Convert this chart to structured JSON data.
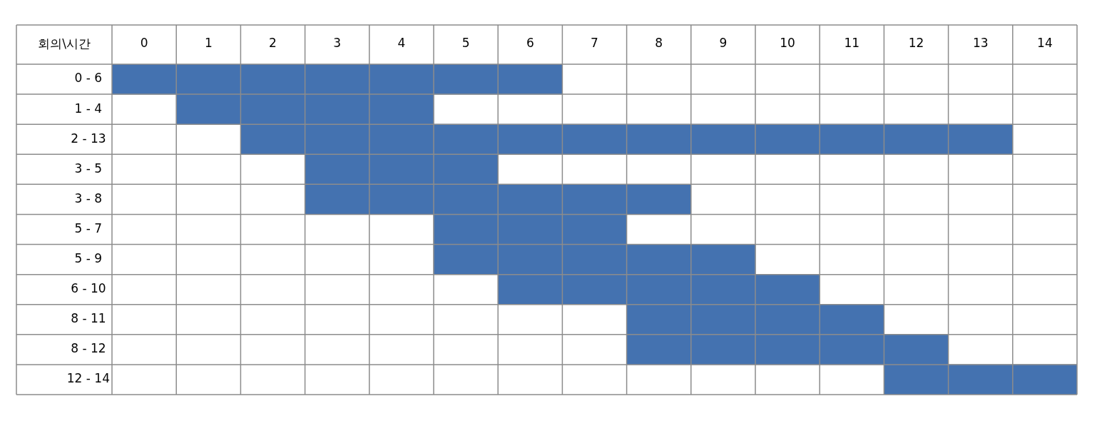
{
  "chart_data": {
    "type": "bar",
    "orientation": "horizontal",
    "ylabel": "회의\\시간",
    "categories": [
      "0 - 6",
      "1 - 4",
      "2 - 13",
      "3 - 5",
      "3 - 8",
      "5 - 7",
      "5 - 9",
      "6 - 10",
      "8 - 11",
      "8 - 12",
      "12 - 14"
    ],
    "base": [
      -0.5,
      0.5,
      1.5,
      2.5,
      2.5,
      4.5,
      4.5,
      5.5,
      7.5,
      7.5,
      11.5
    ],
    "values": [
      7,
      4,
      12,
      3,
      6,
      3,
      5,
      5,
      4,
      5,
      3
    ],
    "color": "#4472b0",
    "xlim": [
      -0.5,
      14.5
    ],
    "xticks": [
      0,
      1,
      2,
      3,
      4,
      5,
      6,
      7,
      8,
      9,
      10,
      11,
      12,
      13,
      14
    ],
    "grid": true,
    "legend": false
  }
}
